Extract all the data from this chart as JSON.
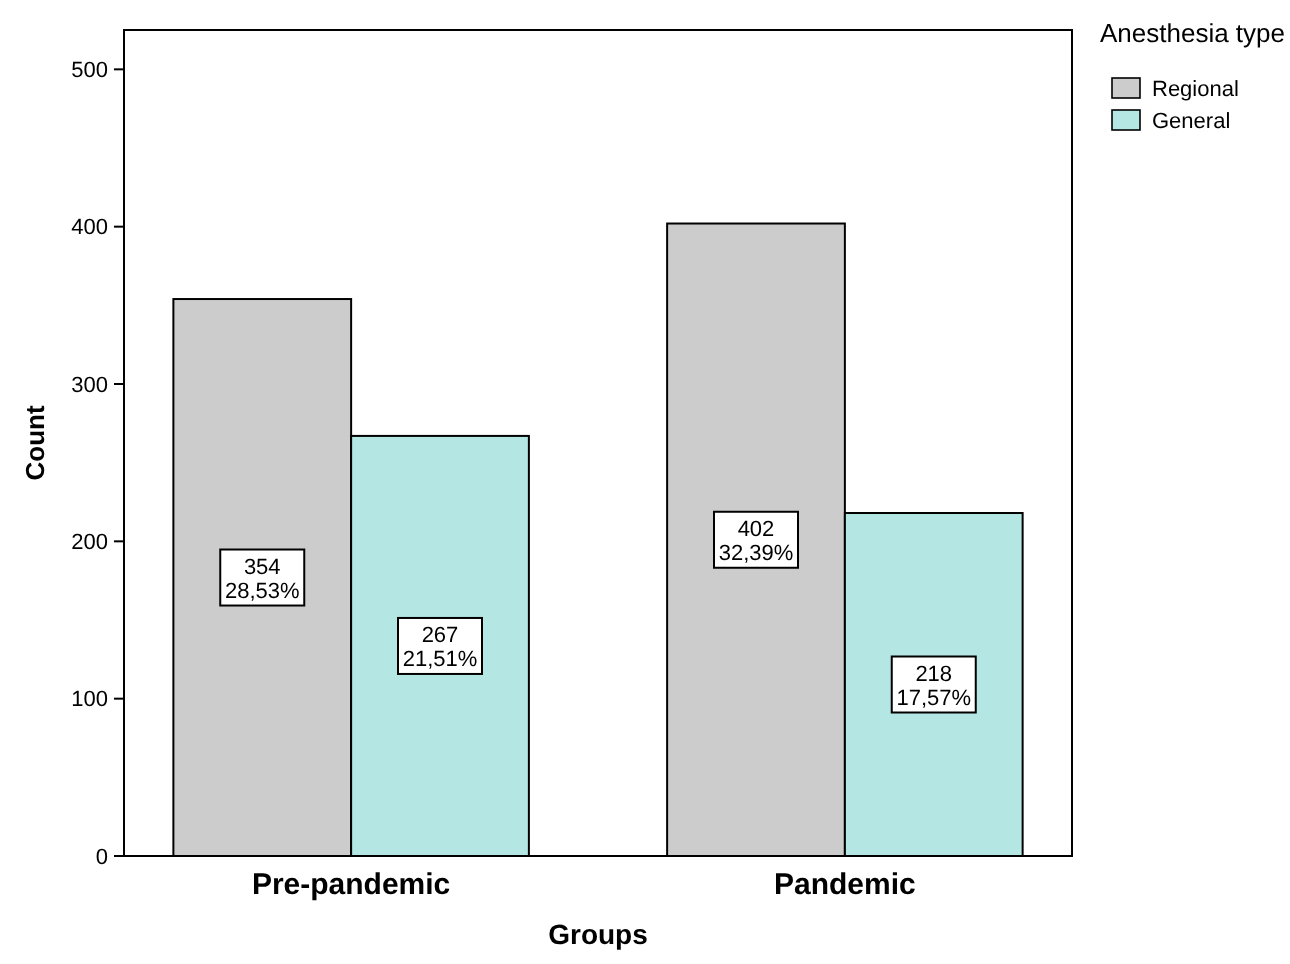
{
  "chart_data": {
    "type": "bar",
    "xlabel": "Groups",
    "ylabel": "Count",
    "legend_title": "Anesthesia type",
    "categories": [
      "Pre-pandemic",
      "Pandemic"
    ],
    "series": [
      {
        "name": "Regional",
        "color": "#cccccc",
        "values": [
          354,
          402
        ],
        "value_labels": [
          "354\n28,53%",
          "402\n32,39%"
        ]
      },
      {
        "name": "General",
        "color": "#b4e6e3",
        "values": [
          267,
          218
        ],
        "value_labels": [
          "267\n21,51%",
          "218\n17,57%"
        ]
      }
    ],
    "ylim": [
      0,
      525
    ],
    "yticks": [
      0,
      100,
      200,
      300,
      400,
      500
    ],
    "grid": false,
    "legend": "top right"
  }
}
